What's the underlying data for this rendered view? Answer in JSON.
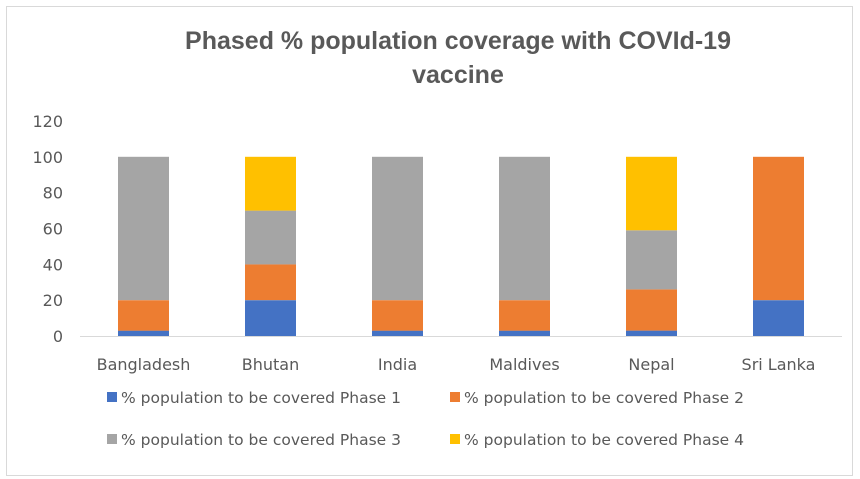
{
  "chart_data": {
    "type": "bar",
    "stacked": true,
    "title_lines": [
      "Phased % population coverage with COVId-19",
      "vaccine"
    ],
    "categories": [
      "Bangladesh",
      "Bhutan",
      "India",
      "Maldives",
      "Nepal",
      "Sri Lanka"
    ],
    "ylim": [
      0,
      120
    ],
    "yticks": [
      0,
      20,
      40,
      60,
      80,
      100,
      120
    ],
    "grid": false,
    "legend_position": "bottom",
    "series": [
      {
        "name": "% population to be covered  Phase 1",
        "color": "#4472c4",
        "values": [
          3,
          20,
          3,
          3,
          3,
          20
        ]
      },
      {
        "name": "% population to be covered  Phase 2",
        "color": "#ed7d31",
        "values": [
          17,
          20,
          17,
          17,
          23,
          80
        ]
      },
      {
        "name": "% population to be covered  Phase 3",
        "color": "#a5a5a5",
        "values": [
          80,
          30,
          80,
          80,
          33,
          0
        ]
      },
      {
        "name": "% population to be covered  Phase 4",
        "color": "#ffc000",
        "values": [
          0,
          30,
          0,
          0,
          41,
          0
        ]
      }
    ]
  }
}
